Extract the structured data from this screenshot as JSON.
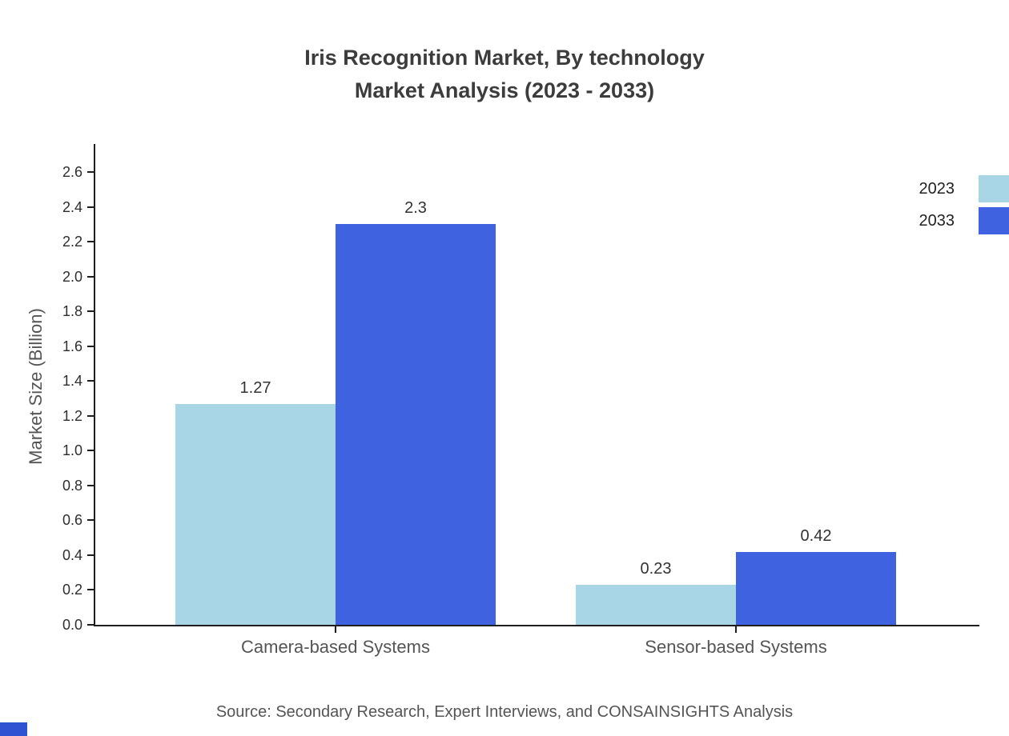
{
  "title": {
    "line1": "Iris Recognition Market, By technology",
    "line2": "Market Analysis (2023 - 2033)"
  },
  "chart_data": {
    "type": "bar",
    "categories": [
      "Camera-based Systems",
      "Sensor-based Systems"
    ],
    "series": [
      {
        "name": "2023",
        "color": "#A8D6E6",
        "values": [
          1.27,
          0.23
        ],
        "labels": [
          "1.27",
          "0.23"
        ]
      },
      {
        "name": "2033",
        "color": "#3F63E0",
        "values": [
          2.3,
          0.42
        ],
        "labels": [
          "2.3",
          "0.42"
        ]
      }
    ],
    "xlabel": "",
    "ylabel": "Market Size (Billion)",
    "ylim": [
      0,
      2.7
    ],
    "yticks": [
      0.0,
      0.2,
      0.4,
      0.6,
      0.8,
      1.0,
      1.2,
      1.4,
      1.6,
      1.8,
      2.0,
      2.2,
      2.4,
      2.6
    ],
    "grid": false,
    "legend_position": "top-right"
  },
  "source": "Source: Secondary Research, Expert Interviews, and CONSAINSIGHTS Analysis"
}
